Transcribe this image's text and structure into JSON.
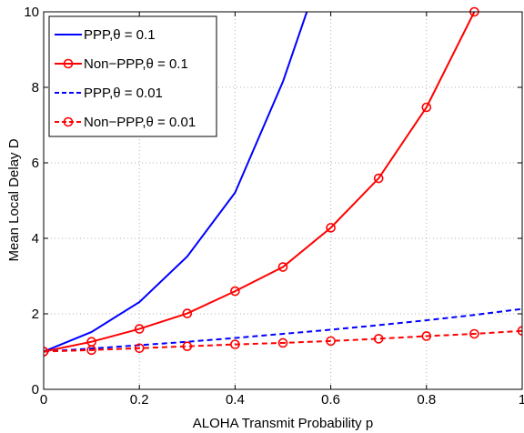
{
  "chart_data": {
    "type": "line",
    "xlabel": "ALOHA Transmit Probability p",
    "ylabel": "Mean Local Delay D",
    "xlim": [
      0,
      1
    ],
    "ylim": [
      0,
      10
    ],
    "xticks": [
      "0",
      "0.2",
      "0.4",
      "0.6",
      "0.8",
      "1"
    ],
    "yticks": [
      "0",
      "2",
      "4",
      "6",
      "8",
      "10"
    ],
    "grid": true,
    "legend_position": "top-left",
    "series": [
      {
        "name": "PPP,θ = 0.1",
        "color": "#0000ff",
        "style": "solid",
        "marker": "none",
        "x": [
          0,
          0.1,
          0.2,
          0.3,
          0.4,
          0.5,
          0.55
        ],
        "y": [
          1.0,
          1.52,
          2.31,
          3.52,
          5.21,
          8.15,
          10.0
        ]
      },
      {
        "name": "Non−PPP,θ = 0.1",
        "color": "#ff0000",
        "style": "solid",
        "marker": "circle",
        "x": [
          0,
          0.1,
          0.2,
          0.3,
          0.4,
          0.5,
          0.6,
          0.7,
          0.8,
          0.9
        ],
        "y": [
          1.0,
          1.26,
          1.6,
          2.01,
          2.6,
          3.24,
          4.28,
          5.59,
          7.47,
          10.0
        ]
      },
      {
        "name": "PPP,θ = 0.01",
        "color": "#0000ff",
        "style": "dashed",
        "marker": "none",
        "x": [
          0,
          0.1,
          0.2,
          0.3,
          0.4,
          0.5,
          0.6,
          0.7,
          0.8,
          0.9,
          1.0
        ],
        "y": [
          1.0,
          1.08,
          1.17,
          1.26,
          1.36,
          1.47,
          1.58,
          1.7,
          1.83,
          1.97,
          2.13
        ]
      },
      {
        "name": "Non−PPP,θ = 0.01",
        "color": "#ff0000",
        "style": "dashed",
        "marker": "circle",
        "x": [
          0,
          0.1,
          0.2,
          0.3,
          0.4,
          0.5,
          0.6,
          0.7,
          0.8,
          0.9,
          1.0
        ],
        "y": [
          1.0,
          1.04,
          1.09,
          1.14,
          1.19,
          1.23,
          1.28,
          1.34,
          1.41,
          1.47,
          1.55
        ]
      }
    ]
  }
}
